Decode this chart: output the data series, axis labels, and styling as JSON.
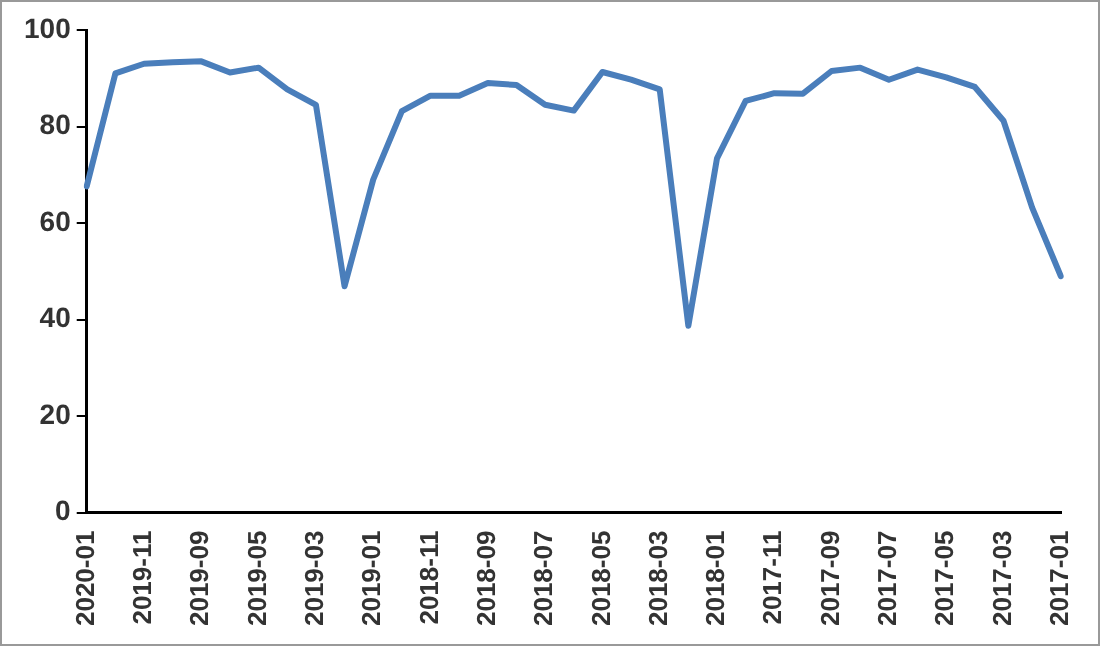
{
  "chart_data": {
    "type": "line",
    "categories": [
      "2020-01",
      null,
      "2019-11",
      null,
      "2019-09",
      null,
      "2019-05",
      null,
      "2019-03",
      null,
      "2019-01",
      null,
      "2018-11",
      null,
      "2018-09",
      null,
      "2018-07",
      null,
      "2018-05",
      null,
      "2018-03",
      null,
      "2018-01",
      null,
      "2017-11",
      null,
      "2017-09",
      null,
      "2017-07",
      null,
      "2017-05",
      null,
      "2017-03",
      null,
      "2017-01"
    ],
    "series": [
      {
        "color": "#4a7ebb",
        "values": [
          67.6,
          91,
          93,
          93.3,
          93.5,
          91.2,
          92.2,
          87.7,
          84.5,
          46.9,
          69,
          83.2,
          86.4,
          86.4,
          89,
          88.6,
          84.5,
          83.3,
          91.3,
          89.7,
          87.7,
          38.7,
          73.4,
          85.3,
          86.9,
          86.8,
          91.5,
          92.2,
          89.7,
          91.8,
          90.2,
          88.2,
          81.2,
          63.2,
          49
        ]
      }
    ],
    "ylim": [
      0,
      100
    ],
    "yticks": [
      0,
      20,
      40,
      60,
      80,
      100
    ],
    "grid": false,
    "legend": false,
    "marker": "none",
    "line_style": "solid"
  }
}
